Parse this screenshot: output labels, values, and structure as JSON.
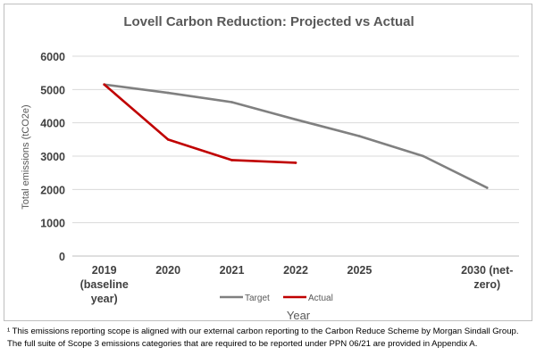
{
  "chart_data": {
    "type": "line",
    "title": "Lovell Carbon Reduction: Projected vs Actual",
    "xlabel": "Year",
    "ylabel": "Total emissions (tCO2e)",
    "categories": [
      [
        "2019",
        "(baseline",
        "year)"
      ],
      [
        "2020"
      ],
      [
        "2021"
      ],
      [
        "2022"
      ],
      [
        "2025"
      ],
      [
        ""
      ],
      [
        "2030 (net-",
        "zero)"
      ]
    ],
    "ylim": [
      0,
      6000
    ],
    "yticks": [
      0,
      1000,
      2000,
      3000,
      4000,
      5000,
      6000
    ],
    "grid": "horizontal",
    "legend_position": "bottom",
    "series": [
      {
        "name": "Target",
        "color": "#808080",
        "values": [
          5150,
          4900,
          4620,
          4100,
          3600,
          3000,
          2050
        ]
      },
      {
        "name": "Actual",
        "color": "#c00000",
        "values": [
          5150,
          3500,
          2880,
          2800,
          null,
          null,
          null
        ]
      }
    ]
  },
  "footnote": "¹ This emissions reporting scope is aligned with our external carbon reporting to the Carbon Reduce Scheme by Morgan Sindall Group. The full suite of Scope 3 emissions categories that are required to be reported under PPN 06/21 are provided in Appendix A."
}
